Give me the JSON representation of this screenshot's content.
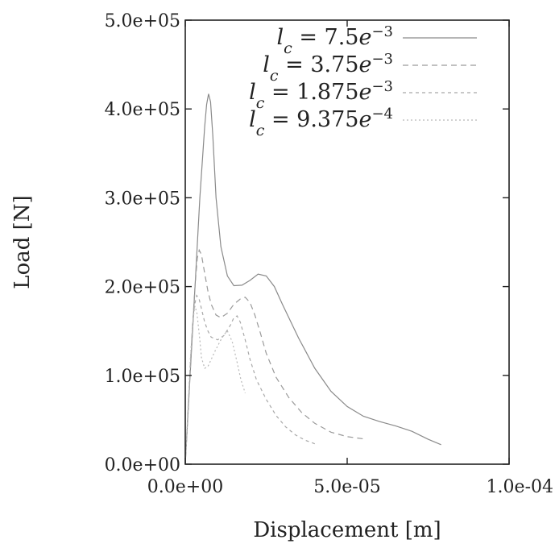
{
  "chart_data": {
    "type": "line",
    "title": "",
    "xlabel": "Displacement [m]",
    "ylabel": "Load [N]",
    "xlim": [
      0,
      0.0001
    ],
    "ylim": [
      0,
      500000
    ],
    "x_ticks": [
      {
        "value": 0,
        "label": "0.0e+00"
      },
      {
        "value": 5e-05,
        "label": "5.0e-05"
      },
      {
        "value": 0.0001,
        "label": "1.0e-04"
      }
    ],
    "y_ticks": [
      {
        "value": 0,
        "label": "0.0e+00"
      },
      {
        "value": 100000,
        "label": "1.0e+05"
      },
      {
        "value": 200000,
        "label": "2.0e+05"
      },
      {
        "value": 300000,
        "label": "3.0e+05"
      },
      {
        "value": 400000,
        "label": "4.0e+05"
      },
      {
        "value": 500000,
        "label": "5.0e+05"
      }
    ],
    "grid": false,
    "legend_position": "top-right",
    "series": [
      {
        "name": "l_c = 7.5e^-3",
        "name_main": "l",
        "name_sub": "c",
        "name_mid": " = 7.5",
        "name_e": "e",
        "name_sup": "−3",
        "color": "#8a8a8a",
        "dash": "",
        "x": [
          0,
          1.5e-06,
          3e-06,
          4.5e-06,
          6e-06,
          6.6e-06,
          7.2e-06,
          7.8e-06,
          8.5e-06,
          9.5e-06,
          1.1e-05,
          1.3e-05,
          1.5e-05,
          1.75e-05,
          2e-05,
          2.25e-05,
          2.5e-05,
          2.75e-05,
          3e-05,
          3.5e-05,
          4e-05,
          4.5e-05,
          5e-05,
          5.5e-05,
          6e-05,
          6.5e-05,
          7e-05,
          7.5e-05,
          7.9e-05
        ],
        "y": [
          0,
          100000,
          200000,
          300000,
          380000,
          405000,
          417000,
          408000,
          370000,
          300000,
          245000,
          212000,
          201000,
          201500,
          207000,
          214000,
          212000,
          200000,
          180000,
          142000,
          108000,
          82000,
          65000,
          54000,
          48000,
          43000,
          37000,
          28000,
          22000
        ]
      },
      {
        "name": "l_c = 3.75e^-3",
        "name_main": "l",
        "name_sub": "c",
        "name_mid": " = 3.75",
        "name_e": "e",
        "name_sup": "−3",
        "color": "#9a9a9a",
        "dash": "7,5",
        "x": [
          0,
          1e-06,
          2e-06,
          3e-06,
          3.7e-06,
          4.3e-06,
          5e-06,
          6e-06,
          7e-06,
          8e-06,
          9.5e-06,
          1.1e-05,
          1.3e-05,
          1.5e-05,
          1.7e-05,
          1.85e-05,
          2e-05,
          2.15e-05,
          2.3e-05,
          2.5e-05,
          2.8e-05,
          3.2e-05,
          3.6e-05,
          4e-05,
          4.5e-05,
          5e-05,
          5.6e-05
        ],
        "y": [
          0,
          70000,
          140000,
          200000,
          232000,
          241000,
          236000,
          215000,
          195000,
          180000,
          168000,
          165000,
          170000,
          180000,
          186000,
          188000,
          182000,
          168000,
          150000,
          125000,
          98000,
          75000,
          58000,
          46000,
          36000,
          31000,
          28000
        ]
      },
      {
        "name": "l_c = 1.875e^-3",
        "name_main": "l",
        "name_sub": "c",
        "name_mid": " = 1.875",
        "name_e": "e",
        "name_sup": "−3",
        "color": "#a8a8a8",
        "dash": "4,4",
        "x": [
          0,
          1e-06,
          2e-06,
          2.8e-06,
          3.5e-06,
          4.2e-06,
          5e-06,
          6e-06,
          7e-06,
          8e-06,
          1e-05,
          1.2e-05,
          1.4e-05,
          1.5e-05,
          1.6e-05,
          1.7e-05,
          1.85e-05,
          2e-05,
          2.2e-05,
          2.5e-05,
          2.8e-05,
          3.1e-05,
          3.4e-05,
          3.7e-05,
          4e-05
        ],
        "y": [
          0,
          70000,
          140000,
          178000,
          190000,
          187000,
          175000,
          160000,
          150000,
          143000,
          140000,
          145000,
          157000,
          165000,
          167000,
          160000,
          140000,
          118000,
          95000,
          73000,
          55000,
          42000,
          33000,
          27000,
          23000
        ]
      },
      {
        "name": "l_c = 9.375e^-4",
        "name_main": "l",
        "name_sub": "c",
        "name_mid": " = 9.375",
        "name_e": "e",
        "name_sup": "−4",
        "color": "#b8b8b8",
        "dash": "2,3",
        "x": [
          0,
          8e-07,
          1.6e-06,
          2.4e-06,
          3e-06,
          3.6e-06,
          4.5e-06,
          5e-06,
          6e-06,
          7e-06,
          8e-06,
          9e-06,
          1e-05,
          1.1e-05,
          1.2e-05,
          1.3e-05,
          1.45e-05,
          1.6e-05,
          1.72e-05,
          1.85e-05
        ],
        "y": [
          0,
          60000,
          120000,
          165000,
          178000,
          170000,
          140000,
          120000,
          108000,
          110000,
          118000,
          126000,
          133000,
          140000,
          146000,
          150000,
          138000,
          115000,
          95000,
          80000
        ]
      }
    ]
  }
}
